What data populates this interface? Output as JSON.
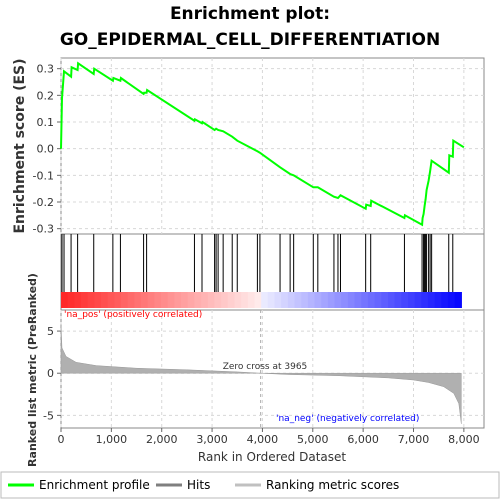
{
  "chart_data": {
    "type": "line",
    "title_line1": "Enrichment plot:",
    "title_line2": "GO_EPIDERMAL_CELL_DIFFERENTIATION",
    "es_ylabel": "Enrichment score (ES)",
    "rank_ylabel": "Ranked list metric (PreRanked)",
    "xlabel": "Rank in Ordered Dataset",
    "xlim": [
      0,
      8400
    ],
    "es_ylim": [
      -0.32,
      0.34
    ],
    "rank_ylim": [
      -6.5,
      7.5
    ],
    "x_ticks": [
      "0",
      "1,000",
      "2,000",
      "3,000",
      "4,000",
      "5,000",
      "6,000",
      "7,000",
      "8,000"
    ],
    "x_tick_values": [
      0,
      1000,
      2000,
      3000,
      4000,
      5000,
      6000,
      7000,
      8000
    ],
    "es_ticks": [
      "0.3",
      "0.2",
      "0.1",
      "0.0",
      "-0.1",
      "-0.2",
      "-0.3"
    ],
    "es_tick_values": [
      0.3,
      0.2,
      0.1,
      0.0,
      -0.1,
      -0.2,
      -0.3
    ],
    "rank_ticks": [
      "5",
      "0",
      "-5"
    ],
    "rank_tick_values": [
      5,
      0,
      -5
    ],
    "zero_cross_label": "Zero cross at 3965",
    "zero_cross": 3965,
    "pos_label": "'na_pos' (positively correlated)",
    "neg_label": "'na_neg' (negatively correlated)",
    "n_genes": 7950,
    "hits": [
      20,
      60,
      200,
      330,
      650,
      1030,
      1180,
      1640,
      1700,
      2650,
      2800,
      3050,
      3080,
      3120,
      3220,
      3400,
      3500,
      3900,
      3950,
      4350,
      4550,
      4620,
      5010,
      5100,
      5420,
      5500,
      5550,
      6050,
      6150,
      6820,
      7170,
      7200,
      7220,
      7240,
      7260,
      7300,
      7330,
      7360,
      7700,
      7780
    ],
    "es_curve": [
      [
        0,
        0.0
      ],
      [
        20,
        0.19
      ],
      [
        60,
        0.29
      ],
      [
        200,
        0.27
      ],
      [
        210,
        0.305
      ],
      [
        330,
        0.295
      ],
      [
        340,
        0.32
      ],
      [
        650,
        0.28
      ],
      [
        660,
        0.3
      ],
      [
        1030,
        0.255
      ],
      [
        1040,
        0.265
      ],
      [
        1180,
        0.255
      ],
      [
        1190,
        0.265
      ],
      [
        1640,
        0.205
      ],
      [
        1650,
        0.21
      ],
      [
        1700,
        0.21
      ],
      [
        1710,
        0.22
      ],
      [
        2650,
        0.105
      ],
      [
        2660,
        0.11
      ],
      [
        2800,
        0.095
      ],
      [
        2810,
        0.1
      ],
      [
        3050,
        0.07
      ],
      [
        3080,
        0.075
      ],
      [
        3120,
        0.07
      ],
      [
        3220,
        0.065
      ],
      [
        3400,
        0.045
      ],
      [
        3500,
        0.03
      ],
      [
        3900,
        -0.01
      ],
      [
        3950,
        -0.015
      ],
      [
        4350,
        -0.07
      ],
      [
        4550,
        -0.095
      ],
      [
        4620,
        -0.1
      ],
      [
        5010,
        -0.145
      ],
      [
        5100,
        -0.145
      ],
      [
        5420,
        -0.18
      ],
      [
        5500,
        -0.185
      ],
      [
        5550,
        -0.175
      ],
      [
        6050,
        -0.225
      ],
      [
        6060,
        -0.21
      ],
      [
        6150,
        -0.215
      ],
      [
        6160,
        -0.195
      ],
      [
        6820,
        -0.26
      ],
      [
        6830,
        -0.25
      ],
      [
        7170,
        -0.285
      ],
      [
        7180,
        -0.26
      ],
      [
        7200,
        -0.245
      ],
      [
        7220,
        -0.215
      ],
      [
        7240,
        -0.19
      ],
      [
        7260,
        -0.155
      ],
      [
        7300,
        -0.12
      ],
      [
        7330,
        -0.085
      ],
      [
        7360,
        -0.045
      ],
      [
        7700,
        -0.09
      ],
      [
        7710,
        -0.025
      ],
      [
        7780,
        -0.03
      ],
      [
        7790,
        0.03
      ],
      [
        8000,
        0.005
      ]
    ],
    "ranked_metric": [
      [
        0,
        5.8
      ],
      [
        20,
        3.0
      ],
      [
        100,
        2.0
      ],
      [
        300,
        1.3
      ],
      [
        700,
        0.9
      ],
      [
        1500,
        0.6
      ],
      [
        2500,
        0.4
      ],
      [
        3500,
        0.15
      ],
      [
        3965,
        0.0
      ],
      [
        4500,
        -0.15
      ],
      [
        5500,
        -0.3
      ],
      [
        6500,
        -0.55
      ],
      [
        7000,
        -0.8
      ],
      [
        7300,
        -1.1
      ],
      [
        7600,
        -1.6
      ],
      [
        7800,
        -2.4
      ],
      [
        7900,
        -3.6
      ],
      [
        7950,
        -6.0
      ]
    ]
  },
  "legend": {
    "items": [
      {
        "label": "Enrichment profile",
        "color": "#00ff00"
      },
      {
        "label": "Hits",
        "color": "#7f7f7f"
      },
      {
        "label": "Ranking metric scores",
        "color": "#c0c0c0"
      }
    ]
  },
  "colors": {
    "es_line": "#00ff00",
    "hit_line": "#000000",
    "metric_fill": "#b0b0b0",
    "pos_text": "#ff0000",
    "neg_text": "#0000ff",
    "grid": "#d8d8d8"
  }
}
